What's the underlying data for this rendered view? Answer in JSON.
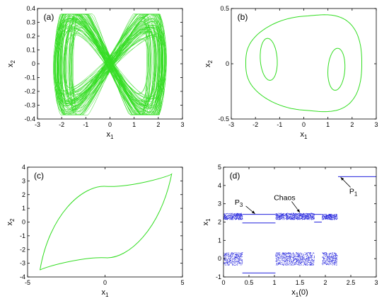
{
  "figure": {
    "panel_labels": [
      "(a)",
      "(b)",
      "(c)",
      "(d)"
    ]
  },
  "chart_data": [
    {
      "id": "a",
      "type": "line",
      "description_label": "(a)",
      "xlabel": "x",
      "xlabel_sub": "1",
      "ylabel": "x",
      "ylabel_sub": "2",
      "xlim": [
        -3,
        3
      ],
      "ylim": [
        -0.4,
        0.4
      ],
      "xticks": [
        "-3",
        "-2",
        "-1",
        "0",
        "1",
        "2",
        "3"
      ],
      "yticks": [
        "-0.4",
        "-0.3",
        "-0.2",
        "-0.1",
        "0",
        "0.1",
        "0.2",
        "0.3",
        "0.4"
      ],
      "grid": false,
      "series": [
        {
          "color": "#33dd22",
          "pattern": "chaotic-attractor",
          "extent": {
            "x": [
              -2.6,
              2.6
            ],
            "y": [
              -0.37,
              0.36
            ]
          },
          "lobes": [
            {
              "cx": -1.2,
              "cy": 0.08
            },
            {
              "cx": 1.2,
              "cy": -0.08
            }
          ]
        }
      ]
    },
    {
      "id": "b",
      "type": "line",
      "description_label": "(b)",
      "xlabel": "x",
      "xlabel_sub": "1",
      "ylabel": "x",
      "ylabel_sub": "2",
      "xlim": [
        -3,
        3
      ],
      "ylim": [
        -0.5,
        0.5
      ],
      "xticks": [
        "-3",
        "-2",
        "-1",
        "0",
        "1",
        "2",
        "3"
      ],
      "yticks": [
        "-0.5",
        "0",
        "0.5"
      ],
      "grid": false,
      "series": [
        {
          "color": "#33dd22",
          "pattern": "closed-curve",
          "outer": {
            "x": [
              -2.4,
              2.4
            ],
            "y": [
              -0.42,
              0.43
            ]
          },
          "inner_loops": [
            {
              "cx": -1.45,
              "cy": 0.04,
              "rx": 0.35,
              "ry": 0.19
            },
            {
              "cx": 1.35,
              "cy": -0.05,
              "rx": 0.35,
              "ry": 0.19
            }
          ]
        }
      ]
    },
    {
      "id": "c",
      "type": "line",
      "description_label": "(c)",
      "xlabel": "x",
      "xlabel_sub": "1",
      "ylabel": "x",
      "ylabel_sub": "2",
      "xlim": [
        -5,
        5
      ],
      "ylim": [
        -4,
        4
      ],
      "xticks": [
        "-5",
        "0",
        "5"
      ],
      "yticks": [
        "-4",
        "-3",
        "-2",
        "-1",
        "0",
        "1",
        "2",
        "3",
        "4"
      ],
      "grid": false,
      "series": [
        {
          "color": "#33dd22",
          "pattern": "limit-cycle",
          "corners": [
            [
              4.3,
              3.5
            ],
            [
              -4.2,
              -3.5
            ]
          ],
          "upper_mid_y": 2.6,
          "lower_mid_y": -2.6
        }
      ]
    },
    {
      "id": "d",
      "type": "scatter",
      "description_label": "(d)",
      "xlabel": "x",
      "xlabel_sub": "1",
      "xlabel_suffix": "(0)",
      "ylabel": "x",
      "ylabel_sub": "1",
      "xlim": [
        0,
        3
      ],
      "ylim": [
        -1,
        5
      ],
      "xticks": [
        "0",
        "0.5",
        "1",
        "1.5",
        "2",
        "2.5",
        "3"
      ],
      "yticks": [
        "-1",
        "0",
        "1",
        "2",
        "3",
        "4",
        "5"
      ],
      "grid": false,
      "color": "#2222dd",
      "chaos_bands": [
        {
          "x": [
            0,
            0.37
          ],
          "y_upper": [
            2.15,
            2.5
          ],
          "y_lower": [
            -0.35,
            0.35
          ]
        },
        {
          "x": [
            1.02,
            1.78
          ],
          "y_upper": [
            2.15,
            2.5
          ],
          "y_lower": [
            -0.35,
            0.35
          ]
        },
        {
          "x": [
            1.93,
            2.23
          ],
          "y_upper": [
            2.15,
            2.45
          ],
          "y_lower": [
            -0.35,
            0.35
          ]
        }
      ],
      "lines": [
        {
          "x": [
            0.37,
            1.02
          ],
          "y": 2.42
        },
        {
          "x": [
            0.37,
            1.02
          ],
          "y": 1.95
        },
        {
          "x": [
            0.37,
            1.02
          ],
          "y": -0.78
        },
        {
          "x": [
            1.78,
            1.93
          ],
          "y": 2.0
        },
        {
          "x": [
            1.78,
            1.93
          ],
          "y": 2.42
        },
        {
          "x": [
            2.25,
            3.0
          ],
          "y": 4.48
        }
      ],
      "annotations": [
        {
          "text": "P",
          "sub": "3",
          "at": [
            0.3,
            2.95
          ],
          "arrow_to": [
            0.62,
            2.45
          ]
        },
        {
          "text": "Chaos",
          "sub": "",
          "at": [
            1.2,
            3.2
          ],
          "arrow_to": [
            1.5,
            2.52
          ]
        },
        {
          "text": "P",
          "sub": "1",
          "at": [
            2.55,
            3.55
          ],
          "arrow_to": [
            2.3,
            4.45
          ]
        }
      ]
    }
  ]
}
